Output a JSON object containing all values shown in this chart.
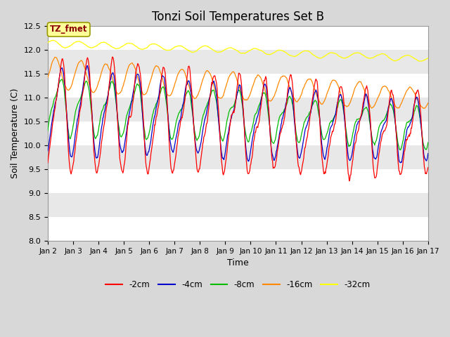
{
  "title": "Tonzi Soil Temperatures Set B",
  "xlabel": "Time",
  "ylabel": "Soil Temperature (C)",
  "ylim": [
    8.0,
    12.5
  ],
  "legend_labels": [
    "-2cm",
    "-4cm",
    "-8cm",
    "-16cm",
    "-32cm"
  ],
  "legend_colors": [
    "#ff0000",
    "#0000cc",
    "#00bb00",
    "#ff8800",
    "#ffff00"
  ],
  "annotation_text": "TZ_fmet",
  "annotation_color": "#8b0000",
  "annotation_bg": "#ffff99",
  "annotation_border": "#999900",
  "bg_color": "#d8d8d8",
  "title_fontsize": 12,
  "label_fontsize": 9,
  "tick_fontsize": 8,
  "tick_dates": [
    "Jan 2",
    "Jan 3",
    "Jan 4",
    "Jan 5",
    "Jan 6",
    "Jan 7",
    "Jan 8",
    "Jan 9",
    "Jan 10",
    "Jan 11",
    "Jan 12",
    "Jan 13",
    "Jan 14",
    "Jan 15",
    "Jan 16",
    "Jan 17"
  ],
  "yticks": [
    8.0,
    8.5,
    9.0,
    9.5,
    10.0,
    10.5,
    11.0,
    11.5,
    12.0,
    12.5
  ]
}
